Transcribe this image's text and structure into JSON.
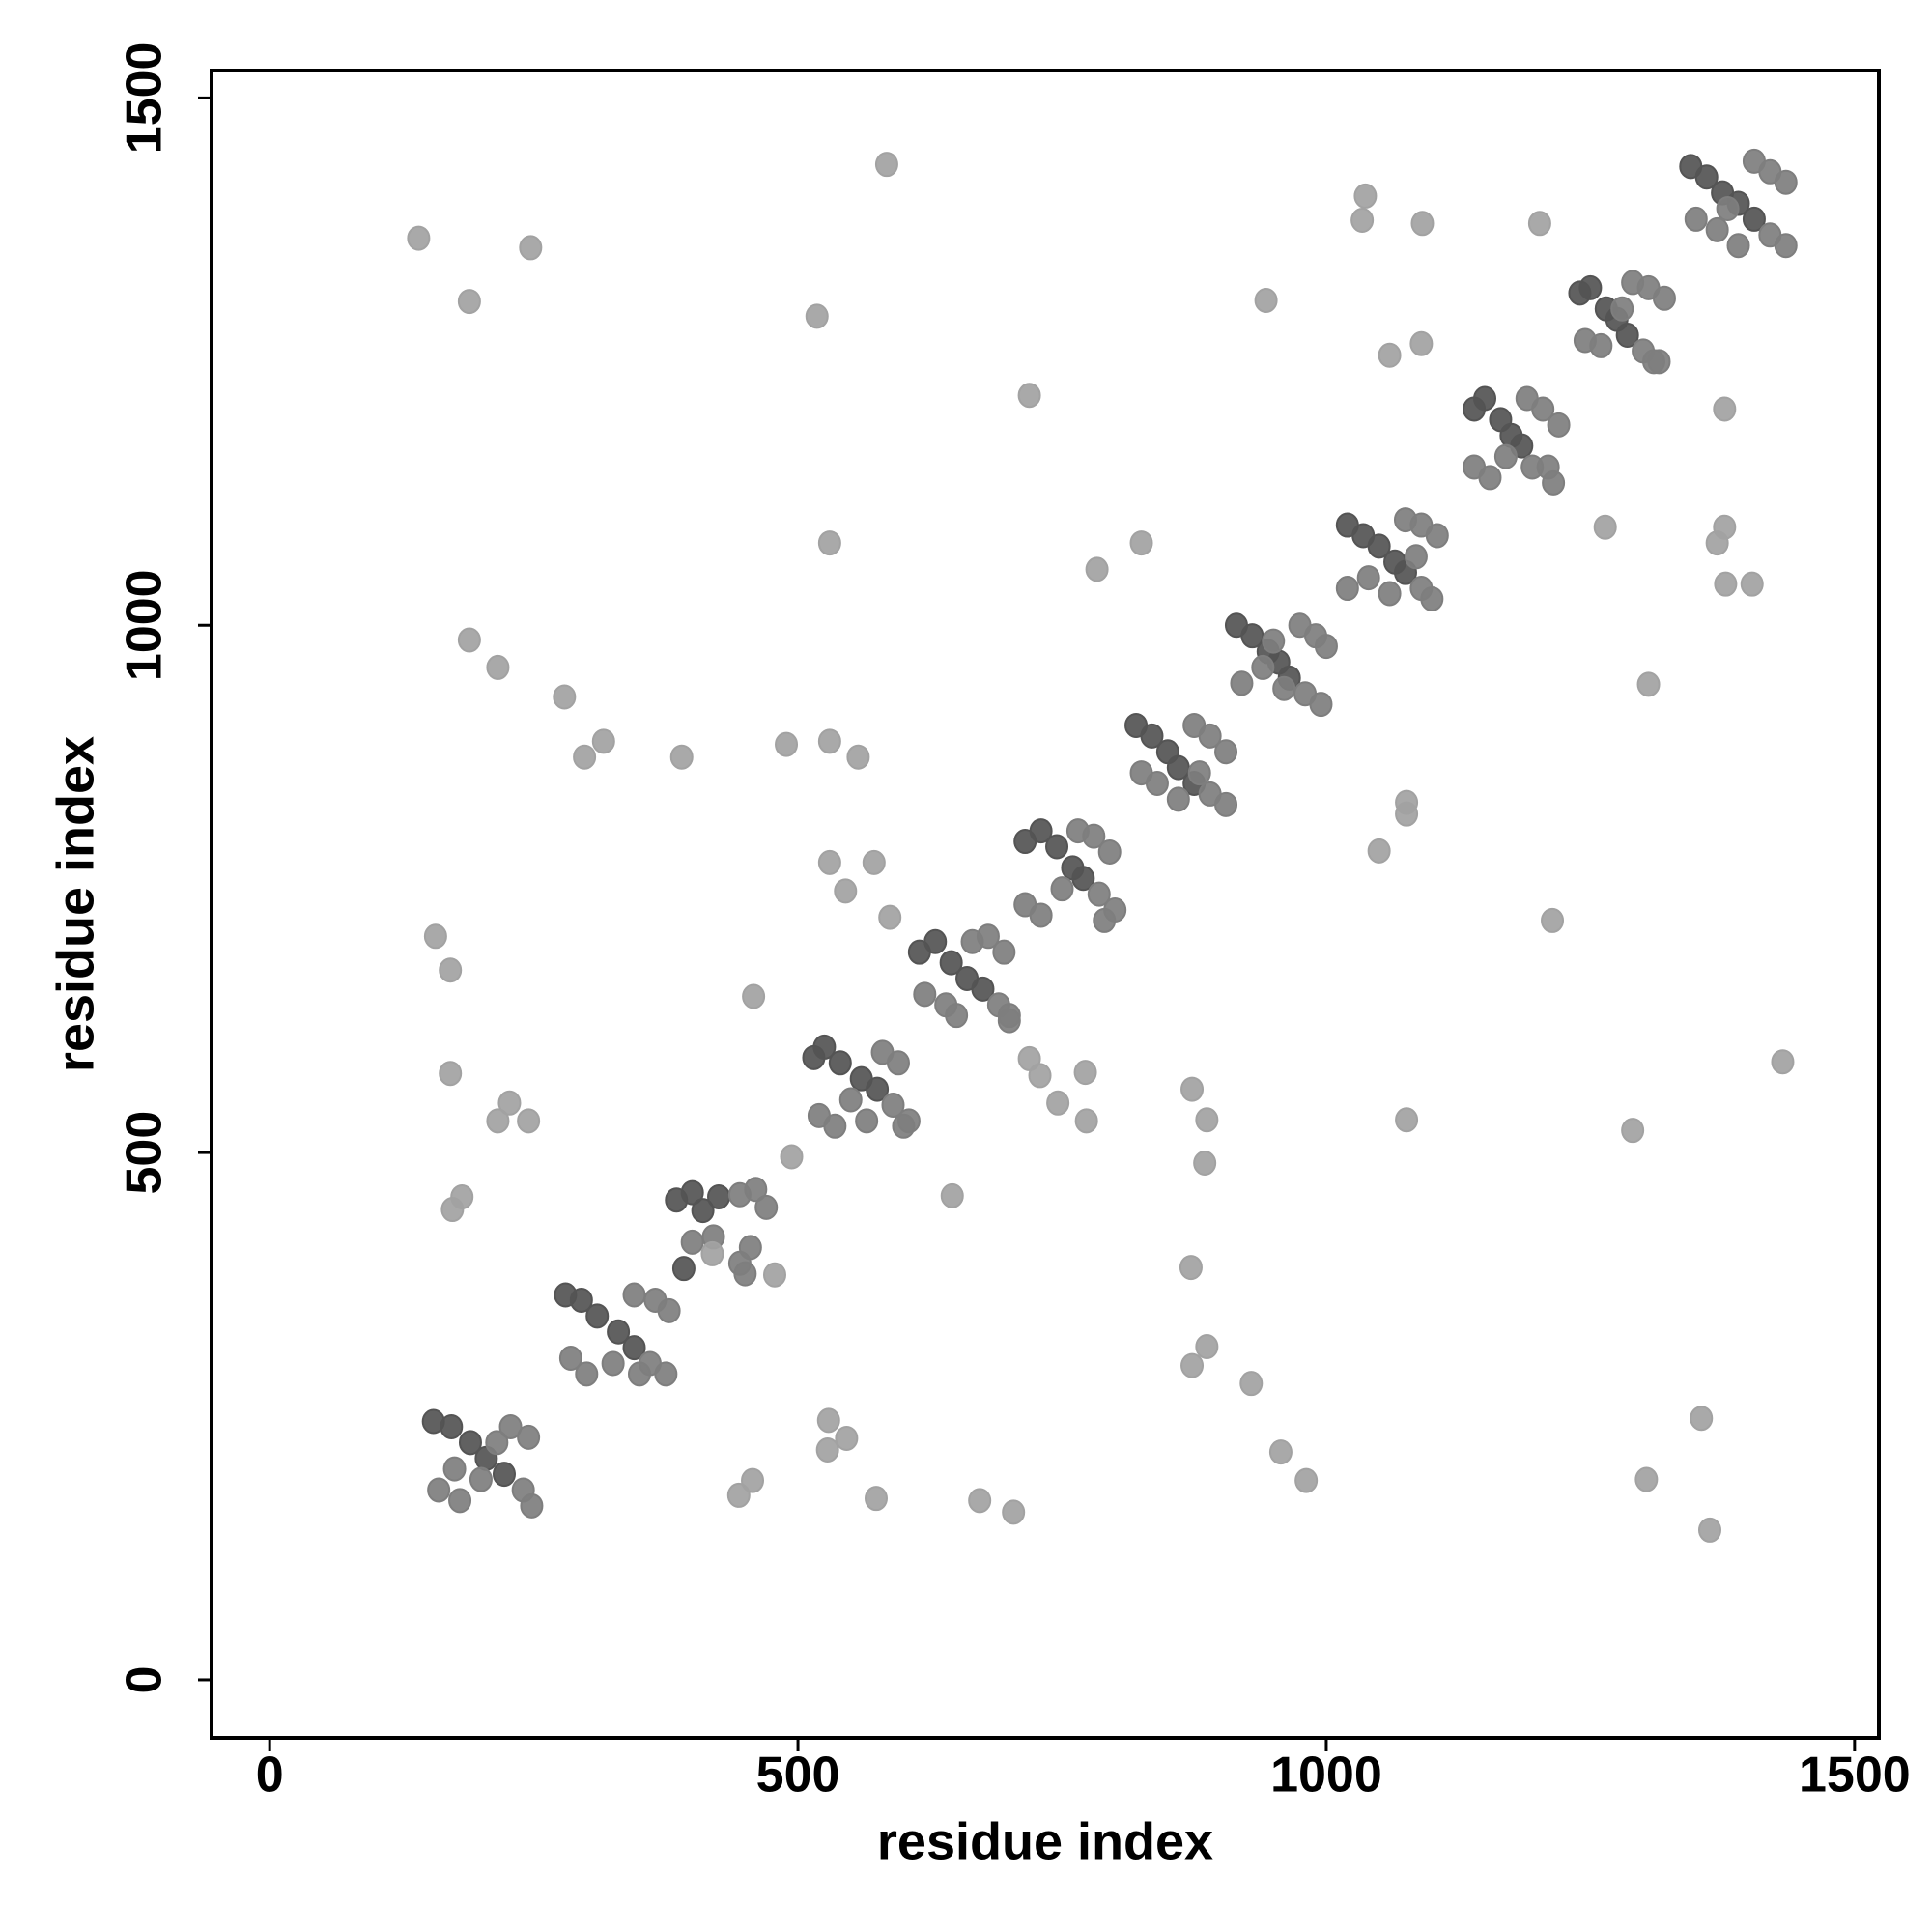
{
  "chart_data": {
    "type": "scatter",
    "xlabel": "residue index",
    "ylabel": "residue index",
    "xlim": [
      -55,
      1523
    ],
    "ylim": [
      -55,
      1526
    ],
    "xticks": [
      0,
      500,
      1000,
      1500
    ],
    "yticks": [
      0,
      500,
      1000,
      1500
    ],
    "series": [
      {
        "color": "#545454",
        "x": [
          155,
          172,
          190,
          205,
          222,
          280,
          295,
          310,
          330,
          345,
          385,
          400,
          410,
          425,
          392,
          515,
          525,
          540,
          560,
          575,
          615,
          630,
          645,
          660,
          675,
          715,
          730,
          745,
          760,
          770,
          820,
          835,
          850,
          860,
          875,
          915,
          930,
          945,
          955,
          965,
          1020,
          1035,
          1050,
          1065,
          1075,
          1140,
          1150,
          1165,
          1175,
          1185,
          1240,
          1250,
          1265,
          1275,
          1285,
          1345,
          1360,
          1375,
          1390,
          1405
        ],
        "y": [
          245,
          240,
          225,
          210,
          195,
          365,
          360,
          345,
          330,
          315,
          455,
          462,
          445,
          458,
          390,
          590,
          600,
          585,
          570,
          560,
          690,
          700,
          680,
          665,
          655,
          795,
          805,
          790,
          770,
          760,
          905,
          895,
          880,
          865,
          850,
          1000,
          990,
          975,
          965,
          950,
          1095,
          1085,
          1075,
          1060,
          1050,
          1205,
          1215,
          1195,
          1180,
          1170,
          1315,
          1320,
          1300,
          1290,
          1275,
          1435,
          1425,
          1410,
          1400,
          1385
        ]
      },
      {
        "color": "#7e7e7e",
        "x": [
          240,
          248,
          160,
          180,
          200,
          228,
          245,
          215,
          175,
          360,
          375,
          285,
          300,
          345,
          365,
          378,
          325,
          350,
          420,
          445,
          455,
          445,
          460,
          470,
          450,
          400,
          590,
          605,
          520,
          535,
          565,
          580,
          595,
          550,
          600,
          690,
          700,
          620,
          640,
          665,
          680,
          695,
          700,
          650,
          785,
          800,
          715,
          730,
          765,
          780,
          795,
          750,
          790,
          890,
          905,
          825,
          840,
          875,
          890,
          905,
          860,
          880,
          980,
          995,
          920,
          940,
          975,
          990,
          1000,
          960,
          950,
          1090,
          1100,
          1020,
          1040,
          1075,
          1090,
          1105,
          1060,
          1085,
          1195,
          1140,
          1155,
          1170,
          1190,
          1205,
          1220,
          1210,
          1215,
          1300,
          1310,
          1245,
          1260,
          1290,
          1305,
          1320,
          1315,
          1280,
          1420,
          1435,
          1350,
          1370,
          1405,
          1420,
          1435,
          1390,
          1380
        ],
        "y": [
          180,
          165,
          180,
          170,
          190,
          240,
          230,
          225,
          200,
          300,
          290,
          305,
          290,
          365,
          360,
          350,
          300,
          290,
          420,
          395,
          410,
          460,
          465,
          448,
          385,
          415,
          545,
          530,
          535,
          525,
          530,
          595,
          585,
          550,
          525,
          640,
          625,
          650,
          640,
          700,
          705,
          690,
          630,
          630,
          745,
          730,
          735,
          725,
          805,
          800,
          785,
          750,
          720,
          840,
          830,
          860,
          850,
          905,
          895,
          880,
          835,
          860,
          935,
          925,
          945,
          960,
          1000,
          990,
          980,
          940,
          985,
          1035,
          1025,
          1035,
          1045,
          1100,
          1095,
          1085,
          1030,
          1065,
          1150,
          1150,
          1140,
          1160,
          1215,
          1205,
          1190,
          1150,
          1135,
          1260,
          1250,
          1270,
          1265,
          1325,
          1320,
          1310,
          1250,
          1300,
          1370,
          1360,
          1385,
          1375,
          1440,
          1430,
          1420,
          1360,
          1395
        ]
      },
      {
        "color": "#a2a2a2",
        "x": [
          141,
          247,
          189,
          584,
          518,
          719,
          1037,
          1034,
          1091,
          1202,
          943,
          1090,
          1060,
          1377,
          530,
          825,
          783,
          1264,
          1370,
          1377,
          1378,
          1403,
          189,
          216,
          279,
          316,
          298,
          390,
          489,
          530,
          557,
          1305,
          1076,
          1076,
          1050,
          1214,
          157,
          171,
          171,
          227,
          216,
          245,
          182,
          173,
          458,
          572,
          545,
          587,
          530,
          494,
          646,
          719,
          729,
          746,
          772,
          773,
          873,
          887,
          885,
          1076,
          1290,
          1432,
          872,
          887,
          873,
          929,
          957,
          981,
          529,
          546,
          528,
          457,
          444,
          574,
          672,
          704,
          1355,
          1303,
          1363,
          478,
          419
        ],
        "y": [
          1367,
          1358,
          1307,
          1437,
          1293,
          1218,
          1407,
          1384,
          1381,
          1381,
          1308,
          1267,
          1256,
          1205,
          1078,
          1078,
          1053,
          1093,
          1078,
          1093,
          1039,
          1039,
          986,
          960,
          932,
          890,
          875,
          875,
          887,
          890,
          875,
          944,
          832,
          821,
          786,
          720,
          705,
          673,
          575,
          547,
          530,
          530,
          458,
          446,
          648,
          775,
          748,
          723,
          775,
          496,
          459,
          589,
          573,
          547,
          576,
          530,
          560,
          531,
          490,
          531,
          521,
          586,
          391,
          316,
          298,
          281,
          216,
          189,
          246,
          229,
          218,
          189,
          175,
          172,
          170,
          159,
          248,
          190,
          142,
          384,
          404
        ]
      }
    ]
  }
}
